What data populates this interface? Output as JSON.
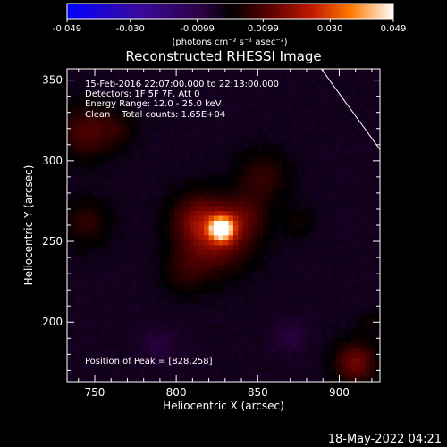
{
  "chart_data": {
    "type": "heatmap",
    "title": "Reconstructed RHESSI Image",
    "xlabel": "Heliocentric X (arcsec)",
    "ylabel": "Heliocentric Y (arcsec)",
    "xlim": [
      733,
      925
    ],
    "ylim": [
      163,
      357
    ],
    "xticks": [
      750,
      800,
      850,
      900
    ],
    "yticks": [
      200,
      250,
      300,
      350
    ],
    "colorbar": {
      "min": -0.049,
      "max": 0.049,
      "ticks": [
        "-0.049",
        "-0.030",
        "-0.0099",
        "0.0099",
        "0.030",
        "0.049"
      ],
      "unit_label": "(photons cm⁻² s⁻¹ asec⁻²)"
    },
    "annotations": [
      "15-Feb-2016 22:07:00.000 to 22:13:00.000",
      "Detectors: 1F 5F 7F, Att 0",
      "Energy Range: 12.0 - 25.0 keV",
      "Clean    Total counts: 1.65E+04"
    ],
    "peak_label": "Position of Peak = [828,258]",
    "peak": [
      828,
      258
    ],
    "limb_line": {
      "x": [
        889,
        925
      ],
      "y": [
        357,
        307
      ]
    },
    "sources": [
      {
        "x": 828,
        "y": 258,
        "sigma": 5,
        "amp": 0.049
      },
      {
        "x": 826,
        "y": 254,
        "sigma": 15,
        "amp": 0.02
      },
      {
        "x": 812,
        "y": 264,
        "sigma": 11,
        "amp": 0.012
      },
      {
        "x": 843,
        "y": 266,
        "sigma": 9,
        "amp": 0.008
      },
      {
        "x": 806,
        "y": 232,
        "sigma": 10,
        "amp": 0.008
      },
      {
        "x": 853,
        "y": 290,
        "sigma": 11,
        "amp": 0.01
      },
      {
        "x": 875,
        "y": 262,
        "sigma": 7,
        "amp": 0.005
      },
      {
        "x": 745,
        "y": 318,
        "sigma": 12,
        "amp": 0.013
      },
      {
        "x": 745,
        "y": 262,
        "sigma": 10,
        "amp": 0.009
      },
      {
        "x": 765,
        "y": 320,
        "sigma": 8,
        "amp": 0.006
      },
      {
        "x": 910,
        "y": 175,
        "sigma": 9,
        "amp": 0.018
      },
      {
        "x": 920,
        "y": 200,
        "sigma": 5,
        "amp": 0.006
      },
      {
        "x": 870,
        "y": 190,
        "sigma": 7,
        "amp": -0.004
      },
      {
        "x": 790,
        "y": 185,
        "sigma": 8,
        "amp": -0.004
      }
    ],
    "background": -0.0035
  },
  "footer": {
    "date": "18-May-2022 04:21"
  }
}
